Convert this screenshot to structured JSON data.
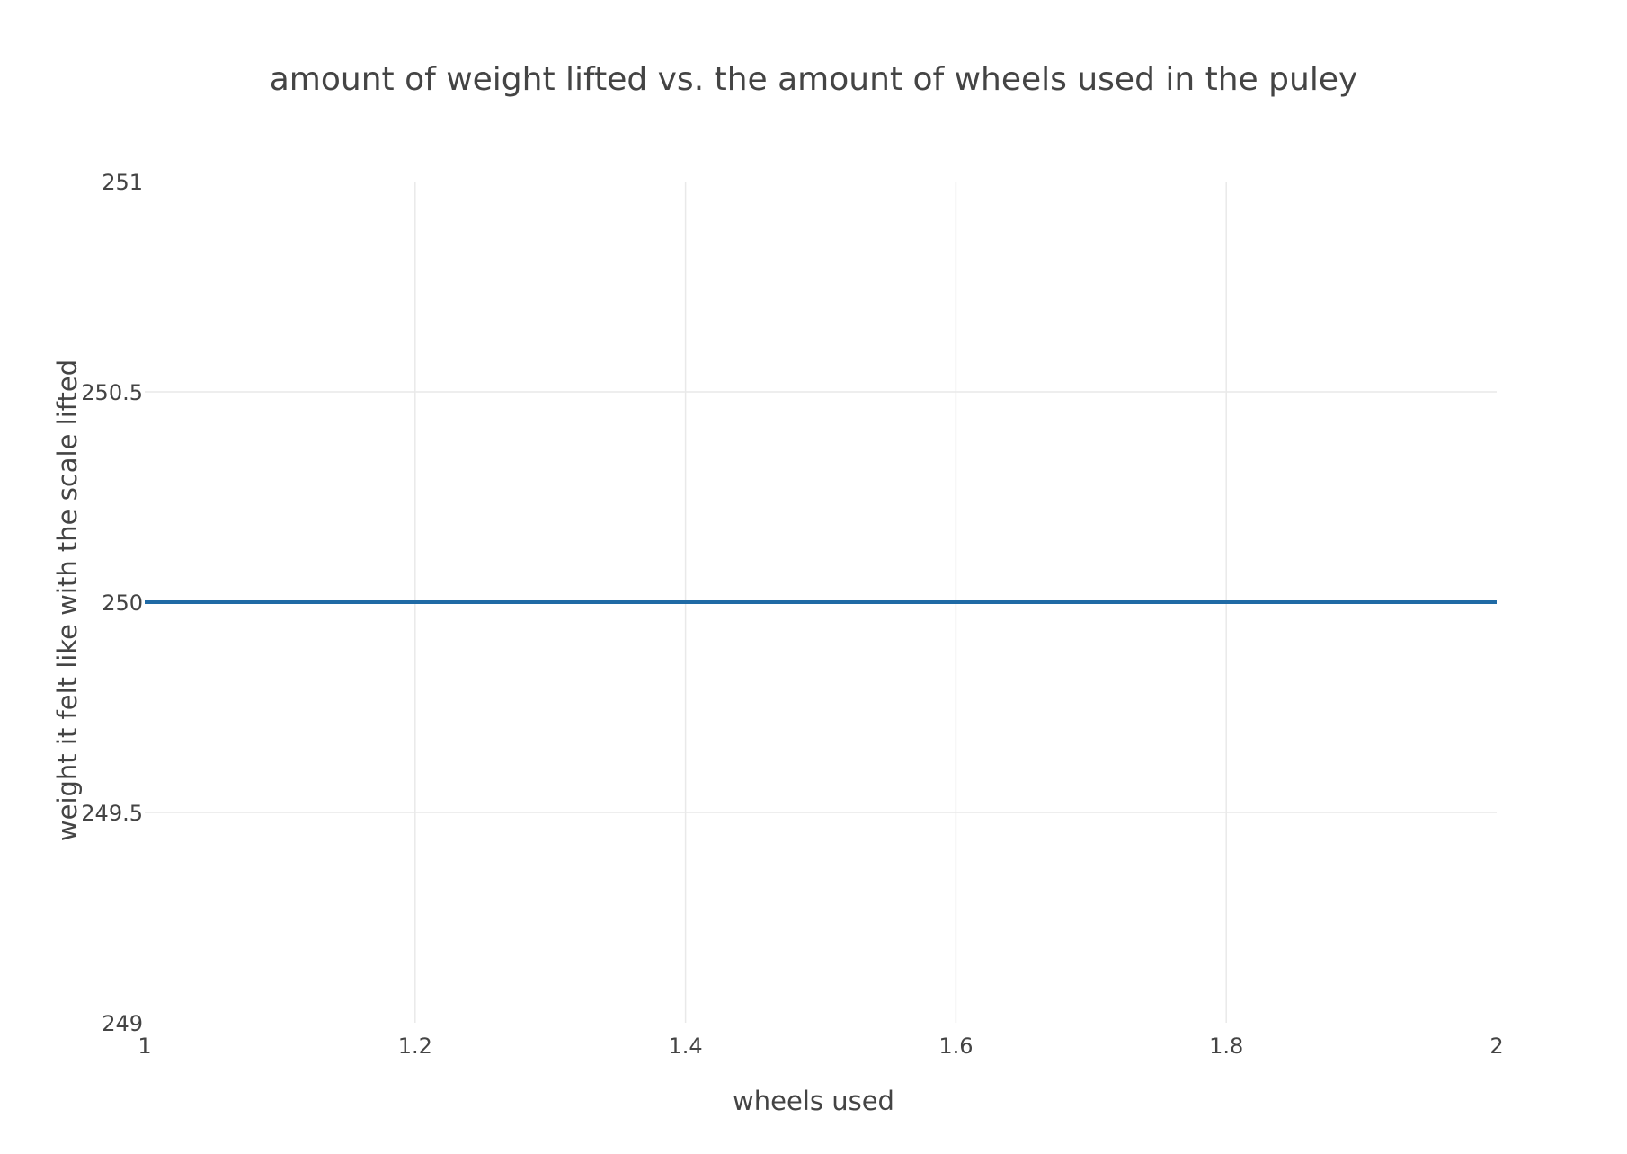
{
  "chart_data": {
    "type": "line",
    "title": "amount of weight lifted vs. the amount of wheels used in the puley",
    "xlabel": "wheels used",
    "ylabel": "weight it felt like with the scale lifted",
    "xlim": [
      1,
      2
    ],
    "ylim": [
      249,
      251
    ],
    "xticks": [
      1,
      1.2,
      1.4,
      1.6,
      1.8,
      2
    ],
    "xtick_labels": [
      "1",
      "1.2",
      "1.4",
      "1.6",
      "1.8",
      "2"
    ],
    "yticks": [
      249,
      249.5,
      250,
      250.5,
      251
    ],
    "ytick_labels": [
      "249",
      "249.5",
      "250",
      "250.5",
      "251"
    ],
    "grid": true,
    "legend": "none",
    "series": [
      {
        "color": "#1f6aa5",
        "x": [
          1,
          2
        ],
        "y": [
          250,
          250
        ]
      }
    ]
  }
}
